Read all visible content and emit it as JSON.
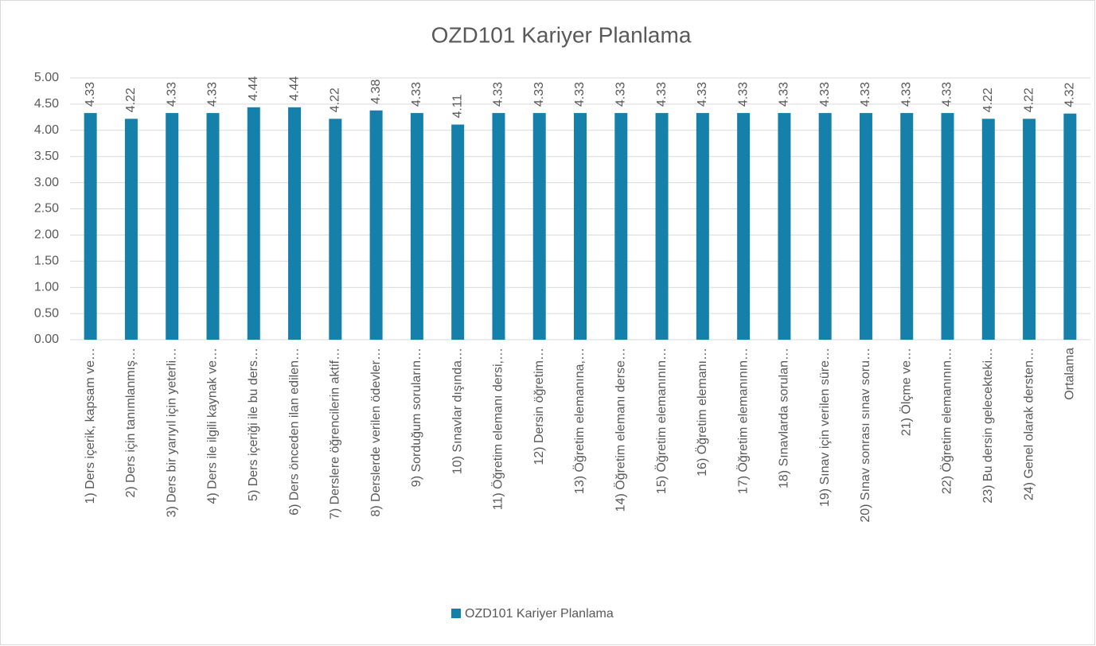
{
  "chart_data": {
    "type": "bar",
    "title": "OZD101 Kariyer Planlama",
    "categories": [
      "1) Ders içerik, kapsam ve…",
      "2) Ders için tanımlanmış…",
      "3) Ders bir yarıyıl için yeterli…",
      "4) Ders ile ilgili kaynak ve…",
      "5) Ders içeriği ile bu ders…",
      "6) Ders önceden ilan edilen…",
      "7) Derslere öğrencilerin aktif…",
      "8) Derslerde verilen ödevler…",
      "9) Sorduğum soruların…",
      "10) Sınavlar dışında…",
      "11)  Öğretim elemanı dersi,…",
      "12) Dersin öğretim…",
      "13) Öğretim elemanına,…",
      "14) Öğretim elemanı derse…",
      "15) Öğretim elemanının…",
      "16) Öğretim elemanı…",
      "17) Öğretim elemanının…",
      "18) Sınavlarda sorulan…",
      "19) Sınav için verilen süre…",
      "20) Sınav sonrası sınav soru…",
      "21) Ölçme ve…",
      "22)  Öğretim elemanının…",
      "23) Bu dersin gelecekteki…",
      "24) Genel olarak dersten…",
      "Ortalama"
    ],
    "series": [
      {
        "name": "OZD101 Kariyer Planlama",
        "color": "#1580aa",
        "values": [
          4.33,
          4.22,
          4.33,
          4.33,
          4.44,
          4.44,
          4.22,
          4.38,
          4.33,
          4.11,
          4.33,
          4.33,
          4.33,
          4.33,
          4.33,
          4.33,
          4.33,
          4.33,
          4.33,
          4.33,
          4.33,
          4.33,
          4.22,
          4.22,
          4.32
        ]
      }
    ],
    "ylim": [
      0,
      5
    ],
    "yticks": [
      {
        "value": 0,
        "label": "0.00"
      },
      {
        "value": 0.5,
        "label": "0.50"
      },
      {
        "value": 1,
        "label": "1.00"
      },
      {
        "value": 1.5,
        "label": "1.50"
      },
      {
        "value": 2,
        "label": "2.00"
      },
      {
        "value": 2.5,
        "label": "2.50"
      },
      {
        "value": 3,
        "label": "3.00"
      },
      {
        "value": 3.5,
        "label": "3.50"
      },
      {
        "value": 4,
        "label": "4.00"
      },
      {
        "value": 4.5,
        "label": "4.50"
      },
      {
        "value": 5,
        "label": "5.00"
      }
    ],
    "grid": true,
    "legend": "bottom"
  }
}
